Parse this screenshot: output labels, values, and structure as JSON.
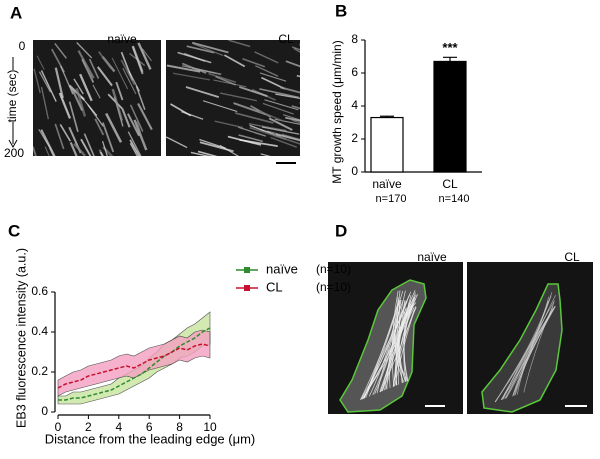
{
  "panel_labels": [
    "A",
    "B",
    "C",
    "D"
  ],
  "panel_a": {
    "conditions": [
      "naïve",
      "CL"
    ],
    "y_label": "time (sec)",
    "y_start": "0",
    "y_end": "200"
  },
  "panel_d": {
    "conditions": [
      "naïve",
      "CL"
    ]
  },
  "chart_data": [
    {
      "type": "bar",
      "y_label": "MT growth speed (μm/min)",
      "categories": [
        "naïve",
        "CL"
      ],
      "sublabels": [
        "n=170",
        "n=140"
      ],
      "values": [
        3.3,
        6.7
      ],
      "errors": [
        0.08,
        0.25
      ],
      "colors": [
        "#ffffff",
        "#000000"
      ],
      "annotation": "***",
      "ylim": [
        0,
        8
      ],
      "yticks": [
        0,
        2,
        4,
        6,
        8
      ]
    },
    {
      "type": "line",
      "x_label": "Distance from the leading edge (μm)",
      "y_label": "EB3 fluorescence intensity (a.u.)",
      "x": [
        0,
        0.5,
        1,
        1.5,
        2,
        2.5,
        3,
        3.5,
        4,
        4.5,
        5,
        5.5,
        6,
        6.5,
        7,
        7.5,
        8,
        8.5,
        9,
        9.5,
        10
      ],
      "series": [
        {
          "name": "naïve",
          "count_label": "(n=10)",
          "color": "#2e8b2e",
          "band_color": "#c8e6a0",
          "values": [
            0.06,
            0.06,
            0.07,
            0.07,
            0.08,
            0.09,
            0.1,
            0.11,
            0.13,
            0.15,
            0.17,
            0.19,
            0.22,
            0.25,
            0.28,
            0.3,
            0.33,
            0.35,
            0.37,
            0.4,
            0.42
          ],
          "lower": [
            0.04,
            0.04,
            0.04,
            0.04,
            0.05,
            0.06,
            0.07,
            0.08,
            0.09,
            0.11,
            0.13,
            0.15,
            0.17,
            0.2,
            0.22,
            0.24,
            0.27,
            0.28,
            0.3,
            0.33,
            0.34
          ],
          "upper": [
            0.08,
            0.08,
            0.1,
            0.1,
            0.11,
            0.12,
            0.13,
            0.14,
            0.17,
            0.19,
            0.21,
            0.23,
            0.27,
            0.3,
            0.34,
            0.36,
            0.39,
            0.42,
            0.44,
            0.47,
            0.5
          ]
        },
        {
          "name": "CL",
          "count_label": "(n=10)",
          "color": "#c8102e",
          "band_color": "#f4a0c0",
          "values": [
            0.12,
            0.14,
            0.15,
            0.16,
            0.18,
            0.19,
            0.2,
            0.21,
            0.22,
            0.23,
            0.22,
            0.24,
            0.26,
            0.27,
            0.28,
            0.3,
            0.32,
            0.31,
            0.33,
            0.34,
            0.33
          ],
          "lower": [
            0.08,
            0.1,
            0.11,
            0.12,
            0.13,
            0.14,
            0.15,
            0.16,
            0.17,
            0.18,
            0.17,
            0.19,
            0.21,
            0.22,
            0.23,
            0.24,
            0.26,
            0.25,
            0.27,
            0.28,
            0.27
          ],
          "upper": [
            0.16,
            0.18,
            0.2,
            0.21,
            0.23,
            0.24,
            0.25,
            0.26,
            0.28,
            0.29,
            0.28,
            0.3,
            0.32,
            0.33,
            0.34,
            0.36,
            0.38,
            0.37,
            0.4,
            0.41,
            0.4
          ]
        }
      ],
      "xlim": [
        0,
        10
      ],
      "ylim": [
        0,
        0.6
      ],
      "xticks": [
        0,
        2,
        4,
        6,
        8,
        10
      ],
      "yticks": [
        0,
        0.2,
        0.4,
        0.6
      ]
    }
  ]
}
